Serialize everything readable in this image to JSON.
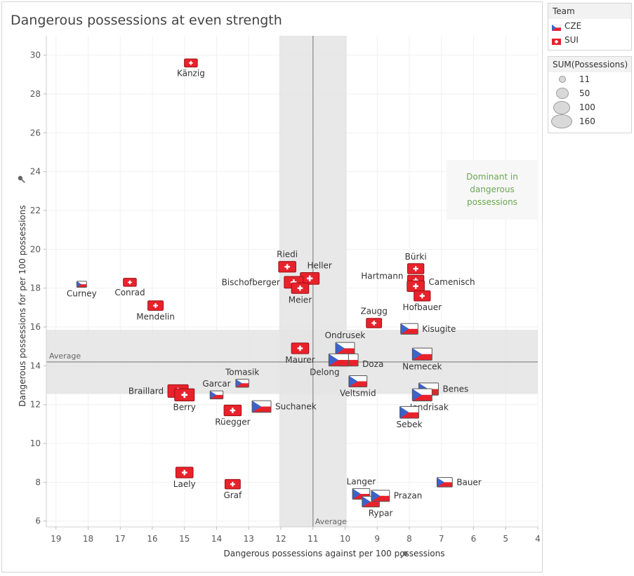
{
  "title": "Dangerous possessions at even strength",
  "legend_team": {
    "title": "Team",
    "items": [
      {
        "label": "CZE",
        "icon": "czech-flag-icon"
      },
      {
        "label": "SUI",
        "icon": "swiss-flag-icon"
      }
    ]
  },
  "legend_size": {
    "title": "SUM(Possessions)",
    "items": [
      11,
      50,
      100,
      160
    ]
  },
  "annotation": {
    "text_lines": [
      "Dominant in",
      "dangerous",
      "possessions"
    ],
    "color": "#6aa84f"
  },
  "colors": {
    "sui_red": "#e8222b",
    "cze_blue": "#3c63c9",
    "cze_red": "#e8222b",
    "band": "#e4e4e4",
    "axis_text": "#555555",
    "label_text": "#333333"
  },
  "chart_data": {
    "type": "scatter",
    "title": "Dangerous possessions at even strength",
    "xlabel": "Dangerous possessions against per 100 possessions",
    "ylabel": "Dangerous possessions for per 100 possessions",
    "x_reversed": true,
    "xlim": [
      19.3,
      4
    ],
    "ylim": [
      5.7,
      31
    ],
    "xticks": [
      19,
      18,
      17,
      16,
      15,
      14,
      13,
      12,
      11,
      10,
      9,
      8,
      7,
      6,
      5,
      4
    ],
    "yticks": [
      6,
      8,
      10,
      12,
      14,
      16,
      18,
      20,
      22,
      24,
      26,
      28,
      30
    ],
    "reference_lines": {
      "x_average": {
        "value": 11.0,
        "label": "Average",
        "band": [
          12.05,
          9.95
        ]
      },
      "y_average": {
        "value": 14.2,
        "label": "Average",
        "band": [
          12.55,
          15.85
        ]
      }
    },
    "pin_icon": "pin-icon",
    "points": [
      {
        "name": "Känzig",
        "team": "SUI",
        "x": 14.8,
        "y": 29.6,
        "size": 30
      },
      {
        "name": "Curney",
        "team": "CZE",
        "x": 18.2,
        "y": 18.2,
        "size": 11
      },
      {
        "name": "Conrad",
        "team": "SUI",
        "x": 16.7,
        "y": 18.3,
        "size": 30
      },
      {
        "name": "Mendelin",
        "team": "SUI",
        "x": 15.9,
        "y": 17.1,
        "size": 50
      },
      {
        "name": "Riedi",
        "team": "SUI",
        "x": 11.8,
        "y": 19.1,
        "size": 70
      },
      {
        "name": "Heller",
        "team": "SUI",
        "x": 11.1,
        "y": 18.5,
        "size": 90
      },
      {
        "name": "Bischofberger",
        "team": "SUI",
        "x": 11.6,
        "y": 18.3,
        "size": 90
      },
      {
        "name": "Meier",
        "team": "SUI",
        "x": 11.4,
        "y": 18.0,
        "size": 70
      },
      {
        "name": "Bürki",
        "team": "SUI",
        "x": 7.8,
        "y": 19.0,
        "size": 60
      },
      {
        "name": "Hartmann",
        "team": "SUI",
        "x": 7.8,
        "y": 18.4,
        "size": 60
      },
      {
        "name": "Camenisch",
        "team": "SUI",
        "x": 7.8,
        "y": 18.1,
        "size": 70
      },
      {
        "name": "Hofbauer",
        "team": "SUI",
        "x": 7.6,
        "y": 17.6,
        "size": 60
      },
      {
        "name": "Zaugg",
        "team": "SUI",
        "x": 9.1,
        "y": 16.2,
        "size": 50
      },
      {
        "name": "Kisugite",
        "team": "CZE",
        "x": 8.0,
        "y": 15.9,
        "size": 70
      },
      {
        "name": "Ondrusek",
        "team": "CZE",
        "x": 10.0,
        "y": 14.9,
        "size": 90
      },
      {
        "name": "Maurer",
        "team": "SUI",
        "x": 11.4,
        "y": 14.9,
        "size": 70
      },
      {
        "name": "Doza",
        "team": "CZE",
        "x": 9.9,
        "y": 14.3,
        "size": 100
      },
      {
        "name": "Delong",
        "team": "CZE",
        "x": 10.2,
        "y": 14.3,
        "size": 100
      },
      {
        "name": "Nemecek",
        "team": "CZE",
        "x": 7.6,
        "y": 14.6,
        "size": 100
      },
      {
        "name": "Tomasik",
        "team": "CZE",
        "x": 13.2,
        "y": 13.1,
        "size": 30
      },
      {
        "name": "Veltsmid",
        "team": "CZE",
        "x": 9.6,
        "y": 13.2,
        "size": 80
      },
      {
        "name": "Benes",
        "team": "CZE",
        "x": 7.4,
        "y": 12.8,
        "size": 100
      },
      {
        "name": "Jendrisak",
        "team": "CZE",
        "x": 7.6,
        "y": 12.5,
        "size": 100
      },
      {
        "name": "Garcar",
        "team": "CZE",
        "x": 14.0,
        "y": 12.5,
        "size": 30
      },
      {
        "name": "Braillard",
        "team": "SUI",
        "x": 15.2,
        "y": 12.7,
        "size": 110
      },
      {
        "name": "Berry",
        "team": "SUI",
        "x": 15.0,
        "y": 12.5,
        "size": 100
      },
      {
        "name": "Suchanek",
        "team": "CZE",
        "x": 12.6,
        "y": 11.9,
        "size": 90
      },
      {
        "name": "Rüegger",
        "team": "SUI",
        "x": 13.5,
        "y": 11.7,
        "size": 70
      },
      {
        "name": "Sebek",
        "team": "CZE",
        "x": 8.0,
        "y": 11.6,
        "size": 90
      },
      {
        "name": "Laely",
        "team": "SUI",
        "x": 15.0,
        "y": 8.5,
        "size": 70
      },
      {
        "name": "Graf",
        "team": "SUI",
        "x": 13.5,
        "y": 7.9,
        "size": 50
      },
      {
        "name": "Langer",
        "team": "CZE",
        "x": 9.5,
        "y": 7.4,
        "size": 70
      },
      {
        "name": "Rypar",
        "team": "CZE",
        "x": 9.2,
        "y": 7.0,
        "size": 70
      },
      {
        "name": "Prazan",
        "team": "CZE",
        "x": 8.9,
        "y": 7.3,
        "size": 80
      },
      {
        "name": "Bauer",
        "team": "CZE",
        "x": 6.9,
        "y": 8.0,
        "size": 50
      }
    ]
  }
}
